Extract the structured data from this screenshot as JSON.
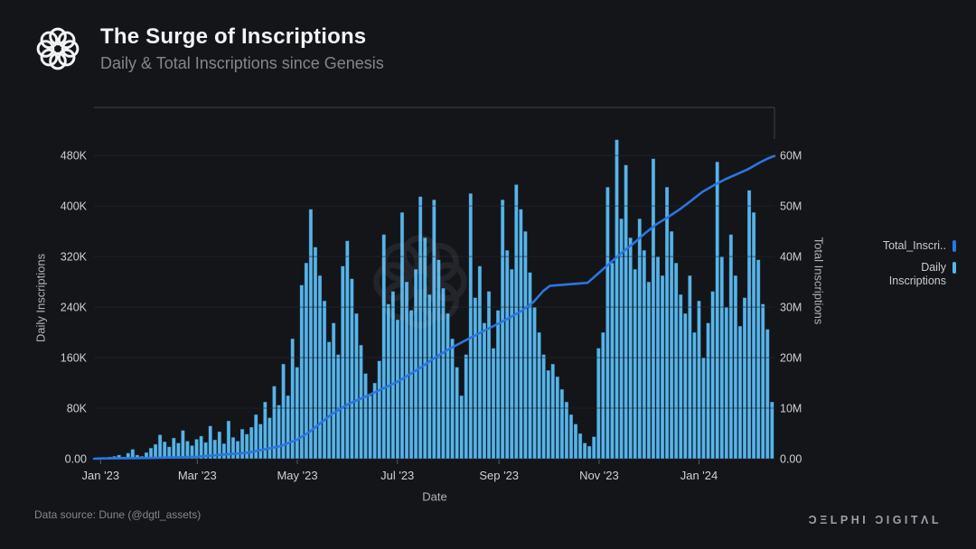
{
  "header": {
    "title": "The Surge of Inscriptions",
    "subtitle": "Daily & Total Inscriptions since Genesis"
  },
  "legend": {
    "total": {
      "label": "Total_Inscri..",
      "color": "#2a76e0"
    },
    "daily": {
      "label": "Daily Inscriptions",
      "color": "#58b4e8"
    }
  },
  "footer": {
    "source": "Data source: Dune (@dgtl_assets)",
    "brand": "ƆΞLPHI ƆIGITΛL"
  },
  "colors": {
    "background": "#141519",
    "bar": "#58b4e8",
    "bar_border": "rgba(8,26,40,0.5)",
    "line": "#2a76e0",
    "grid_under": "#2e3338",
    "grid_over": "rgba(10,14,18,0.5)",
    "plot_border": "#3e434a",
    "tick_text": "#ccd1d5",
    "tick_mark": "#565c63",
    "axis_title_text": "#aeb4ba"
  },
  "chart_data": {
    "type": "combo_bar_line",
    "title": "The Surge of Inscriptions",
    "subtitle": "Daily & Total Inscriptions since Genesis",
    "x_axis": {
      "label": "Date",
      "domain_days": [
        0,
        415
      ],
      "tick_labels": [
        "Jan '23",
        "Mar '23",
        "May '23",
        "Jul '23",
        "Sep '23",
        "Nov '23",
        "Jan '24"
      ],
      "tick_days": [
        4,
        63,
        124,
        185,
        247,
        308,
        369
      ],
      "grid": false
    },
    "y_left": {
      "label": "Daily Inscriptions",
      "tick_labels": [
        "0.00",
        "80K",
        "160K",
        "240K",
        "320K",
        "400K",
        "480K"
      ],
      "tick_values_k": [
        0,
        80,
        160,
        240,
        320,
        400,
        480
      ],
      "max_k": 556,
      "grid": true
    },
    "y_right": {
      "label": "Total Inscriptions",
      "tick_labels": [
        "0.00",
        "10M",
        "20M",
        "30M",
        "40M",
        "50M",
        "60M"
      ],
      "tick_values_m": [
        0,
        10,
        20,
        30,
        40,
        50,
        60
      ],
      "max_m": 69.5
    },
    "series": [
      {
        "name": "Daily Inscriptions",
        "type": "bar",
        "axis": "left",
        "unit": "thousand_inscriptions_per_day",
        "color": "#58b4e8",
        "values_k": [
          1,
          2,
          2,
          3,
          4,
          6,
          3,
          9,
          15,
          6,
          4,
          10,
          17,
          23,
          38,
          27,
          19,
          33,
          25,
          45,
          28,
          21,
          31,
          36,
          26,
          52,
          30,
          43,
          24,
          60,
          34,
          28,
          47,
          39,
          50,
          70,
          55,
          90,
          65,
          115,
          85,
          150,
          100,
          190,
          145,
          275,
          310,
          395,
          335,
          290,
          250,
          185,
          215,
          165,
          305,
          345,
          285,
          230,
          180,
          135,
          100,
          120,
          155,
          355,
          245,
          265,
          220,
          390,
          280,
          235,
          300,
          415,
          350,
          260,
          410,
          315,
          270,
          230,
          190,
          145,
          100,
          165,
          420,
          255,
          305,
          215,
          265,
          175,
          235,
          410,
          330,
          300,
          434,
          395,
          360,
          295,
          240,
          200,
          165,
          140,
          150,
          130,
          110,
          90,
          70,
          55,
          40,
          25,
          20,
          35,
          175,
          200,
          430,
          310,
          505,
          380,
          465,
          350,
          300,
          380,
          330,
          280,
          475,
          320,
          290,
          430,
          360,
          310,
          260,
          230,
          290,
          200,
          250,
          160,
          215,
          265,
          470,
          320,
          240,
          355,
          290,
          210,
          255,
          425,
          390,
          315,
          245,
          205,
          90
        ]
      },
      {
        "name": "Total_Inscriptions",
        "type": "line",
        "axis": "right",
        "unit": "million_inscriptions_cumulative",
        "color": "#2a76e0",
        "points_day_m": [
          [
            0,
            0
          ],
          [
            4,
            0.05
          ],
          [
            34,
            0.15
          ],
          [
            63,
            0.4
          ],
          [
            94,
            1.2
          ],
          [
            114,
            2.5
          ],
          [
            124,
            3.8
          ],
          [
            131,
            5.2
          ],
          [
            138,
            7
          ],
          [
            145,
            8.8
          ],
          [
            155,
            10.8
          ],
          [
            162,
            11.8
          ],
          [
            169,
            12.8
          ],
          [
            177,
            14
          ],
          [
            185,
            15.2
          ],
          [
            192,
            16.6
          ],
          [
            199,
            18
          ],
          [
            207,
            19.8
          ],
          [
            216,
            21.6
          ],
          [
            223,
            22.8
          ],
          [
            230,
            24
          ],
          [
            238,
            25.3
          ],
          [
            247,
            26.8
          ],
          [
            254,
            28
          ],
          [
            261,
            29.3
          ],
          [
            268,
            31
          ],
          [
            274,
            33.2
          ],
          [
            278,
            34.2
          ],
          [
            301,
            34.8
          ],
          [
            308,
            36.8
          ],
          [
            315,
            38.8
          ],
          [
            322,
            40.8
          ],
          [
            329,
            42.6
          ],
          [
            336,
            44.6
          ],
          [
            343,
            46.4
          ],
          [
            350,
            47.8
          ],
          [
            357,
            49.3
          ],
          [
            364,
            51
          ],
          [
            371,
            52.8
          ],
          [
            378,
            54.1
          ],
          [
            385,
            55.3
          ],
          [
            392,
            56.3
          ],
          [
            399,
            57.3
          ],
          [
            406,
            58.6
          ],
          [
            411,
            59.4
          ],
          [
            415,
            59.9
          ]
        ]
      }
    ]
  }
}
